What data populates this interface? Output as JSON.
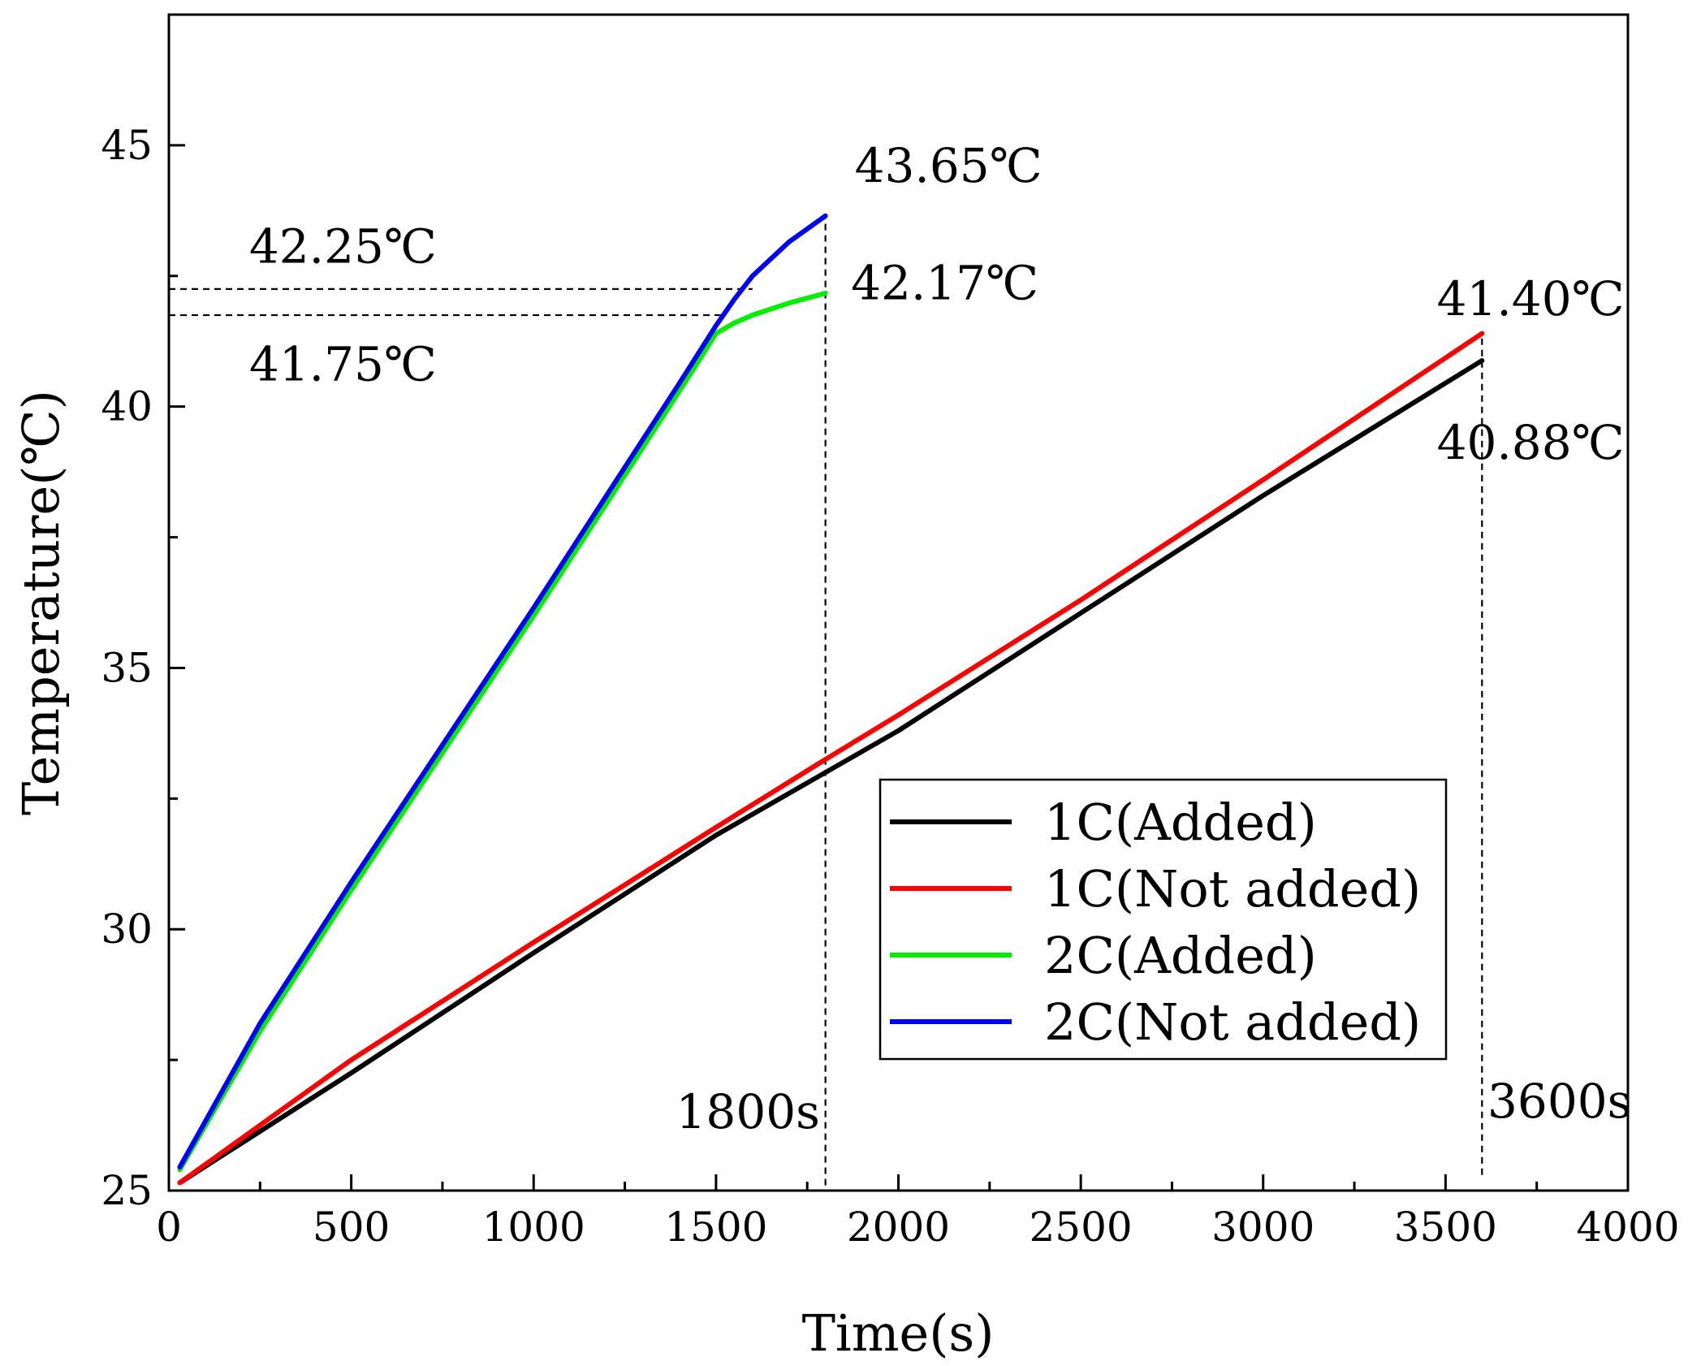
{
  "chart_data": {
    "type": "line",
    "title": "",
    "xlabel": "Time(s)",
    "ylabel": "Temperature(℃)",
    "xlim": [
      0,
      4000
    ],
    "ylim": [
      25,
      47.5
    ],
    "x_ticks": [
      0,
      500,
      1000,
      1500,
      2000,
      2500,
      3000,
      3500,
      4000
    ],
    "x_tick_labels": [
      "0",
      "500",
      "1000",
      "1500",
      "2000",
      "2500",
      "3000",
      "3500",
      "4000"
    ],
    "y_ticks": [
      25,
      30,
      35,
      40,
      45
    ],
    "y_tick_labels": [
      "25",
      "30",
      "35",
      "40",
      "45"
    ],
    "grid": false,
    "legend_position": "bottom-right",
    "series": [
      {
        "name": "1C(Added)",
        "color": "#000000",
        "x": [
          30,
          500,
          1000,
          1500,
          1800,
          2000,
          2500,
          3000,
          3600
        ],
        "y": [
          25.15,
          27.25,
          29.55,
          31.8,
          33.0,
          33.8,
          36.05,
          38.3,
          40.88
        ]
      },
      {
        "name": "1C(Not added)",
        "color": "#ff0000",
        "x": [
          30,
          500,
          1000,
          1500,
          1800,
          2000,
          2500,
          3000,
          3600
        ],
        "y": [
          25.15,
          27.5,
          29.75,
          31.95,
          33.25,
          34.1,
          36.3,
          38.6,
          41.4
        ]
      },
      {
        "name": "2C(Added)",
        "color": "#00ee00",
        "x": [
          30,
          250,
          500,
          1000,
          1400,
          1500,
          1550,
          1600,
          1700,
          1800
        ],
        "y": [
          25.4,
          28.05,
          30.75,
          36.0,
          40.3,
          41.4,
          41.6,
          41.75,
          41.98,
          42.17
        ]
      },
      {
        "name": "2C(Not added)",
        "color": "#0000ff",
        "x": [
          30,
          250,
          500,
          1000,
          1400,
          1500,
          1550,
          1600,
          1700,
          1800
        ],
        "y": [
          25.45,
          28.2,
          30.9,
          36.15,
          40.45,
          41.55,
          42.05,
          42.5,
          43.15,
          43.65
        ]
      }
    ],
    "reference_lines": [
      {
        "orientation": "horizontal",
        "value": 42.25,
        "from": 0,
        "to": 1600
      },
      {
        "orientation": "horizontal",
        "value": 41.75,
        "from": 0,
        "to": 1520
      },
      {
        "orientation": "vertical",
        "value": 1800,
        "from": 25.1,
        "to": 43.65
      },
      {
        "orientation": "vertical",
        "value": 3600,
        "from": 25.3,
        "to": 41.4
      }
    ],
    "annotations": [
      {
        "text": "42.25℃",
        "x": 220,
        "y": 42.75,
        "anchor": "start"
      },
      {
        "text": "41.75℃",
        "x": 220,
        "y": 40.5,
        "anchor": "start"
      },
      {
        "text": "43.65℃",
        "x": 1880,
        "y": 44.3,
        "anchor": "start"
      },
      {
        "text": "42.17℃",
        "x": 1870,
        "y": 42.05,
        "anchor": "start"
      },
      {
        "text": "41.40℃",
        "x": 3990,
        "y": 41.75,
        "anchor": "end"
      },
      {
        "text": "40.88℃",
        "x": 3990,
        "y": 39.0,
        "anchor": "end"
      },
      {
        "text": "1800s",
        "x": 1785,
        "y": 26.2,
        "anchor": "end"
      },
      {
        "text": "3600s",
        "x": 3615,
        "y": 26.4,
        "anchor": "start"
      }
    ]
  }
}
